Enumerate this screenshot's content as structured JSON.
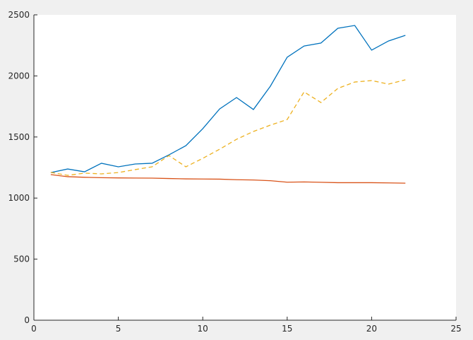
{
  "chart_data": {
    "type": "line",
    "x": [
      1,
      2,
      3,
      4,
      5,
      6,
      7,
      8,
      9,
      10,
      11,
      12,
      13,
      14,
      15,
      16,
      17,
      18,
      19,
      20,
      21,
      22
    ],
    "series": [
      {
        "color": "#0072bd",
        "dash": false,
        "values": [
          1209,
          1238,
          1215,
          1285,
          1256,
          1279,
          1285,
          1354,
          1429,
          1568,
          1730,
          1823,
          1725,
          1915,
          2153,
          2245,
          2269,
          2390,
          2413,
          2211,
          2286,
          2332
        ]
      },
      {
        "color": "#d95319",
        "dash": false,
        "values": [
          1192,
          1175,
          1170,
          1167,
          1165,
          1164,
          1163,
          1160,
          1157,
          1156,
          1155,
          1150,
          1148,
          1142,
          1130,
          1132,
          1129,
          1126,
          1126,
          1126,
          1124,
          1122
        ]
      },
      {
        "color": "#edb120",
        "dash": true,
        "values": [
          1210,
          1186,
          1204,
          1198,
          1209,
          1233,
          1256,
          1348,
          1256,
          1325,
          1400,
          1481,
          1545,
          1597,
          1643,
          1869,
          1782,
          1898,
          1950,
          1962,
          1933,
          1968
        ]
      }
    ],
    "xlim": [
      0,
      25
    ],
    "xticks": [
      0,
      5,
      10,
      15,
      20,
      25
    ],
    "ylim": [
      0,
      2500
    ],
    "yticks": [
      0,
      500,
      1000,
      1500,
      2000,
      2500
    ]
  }
}
